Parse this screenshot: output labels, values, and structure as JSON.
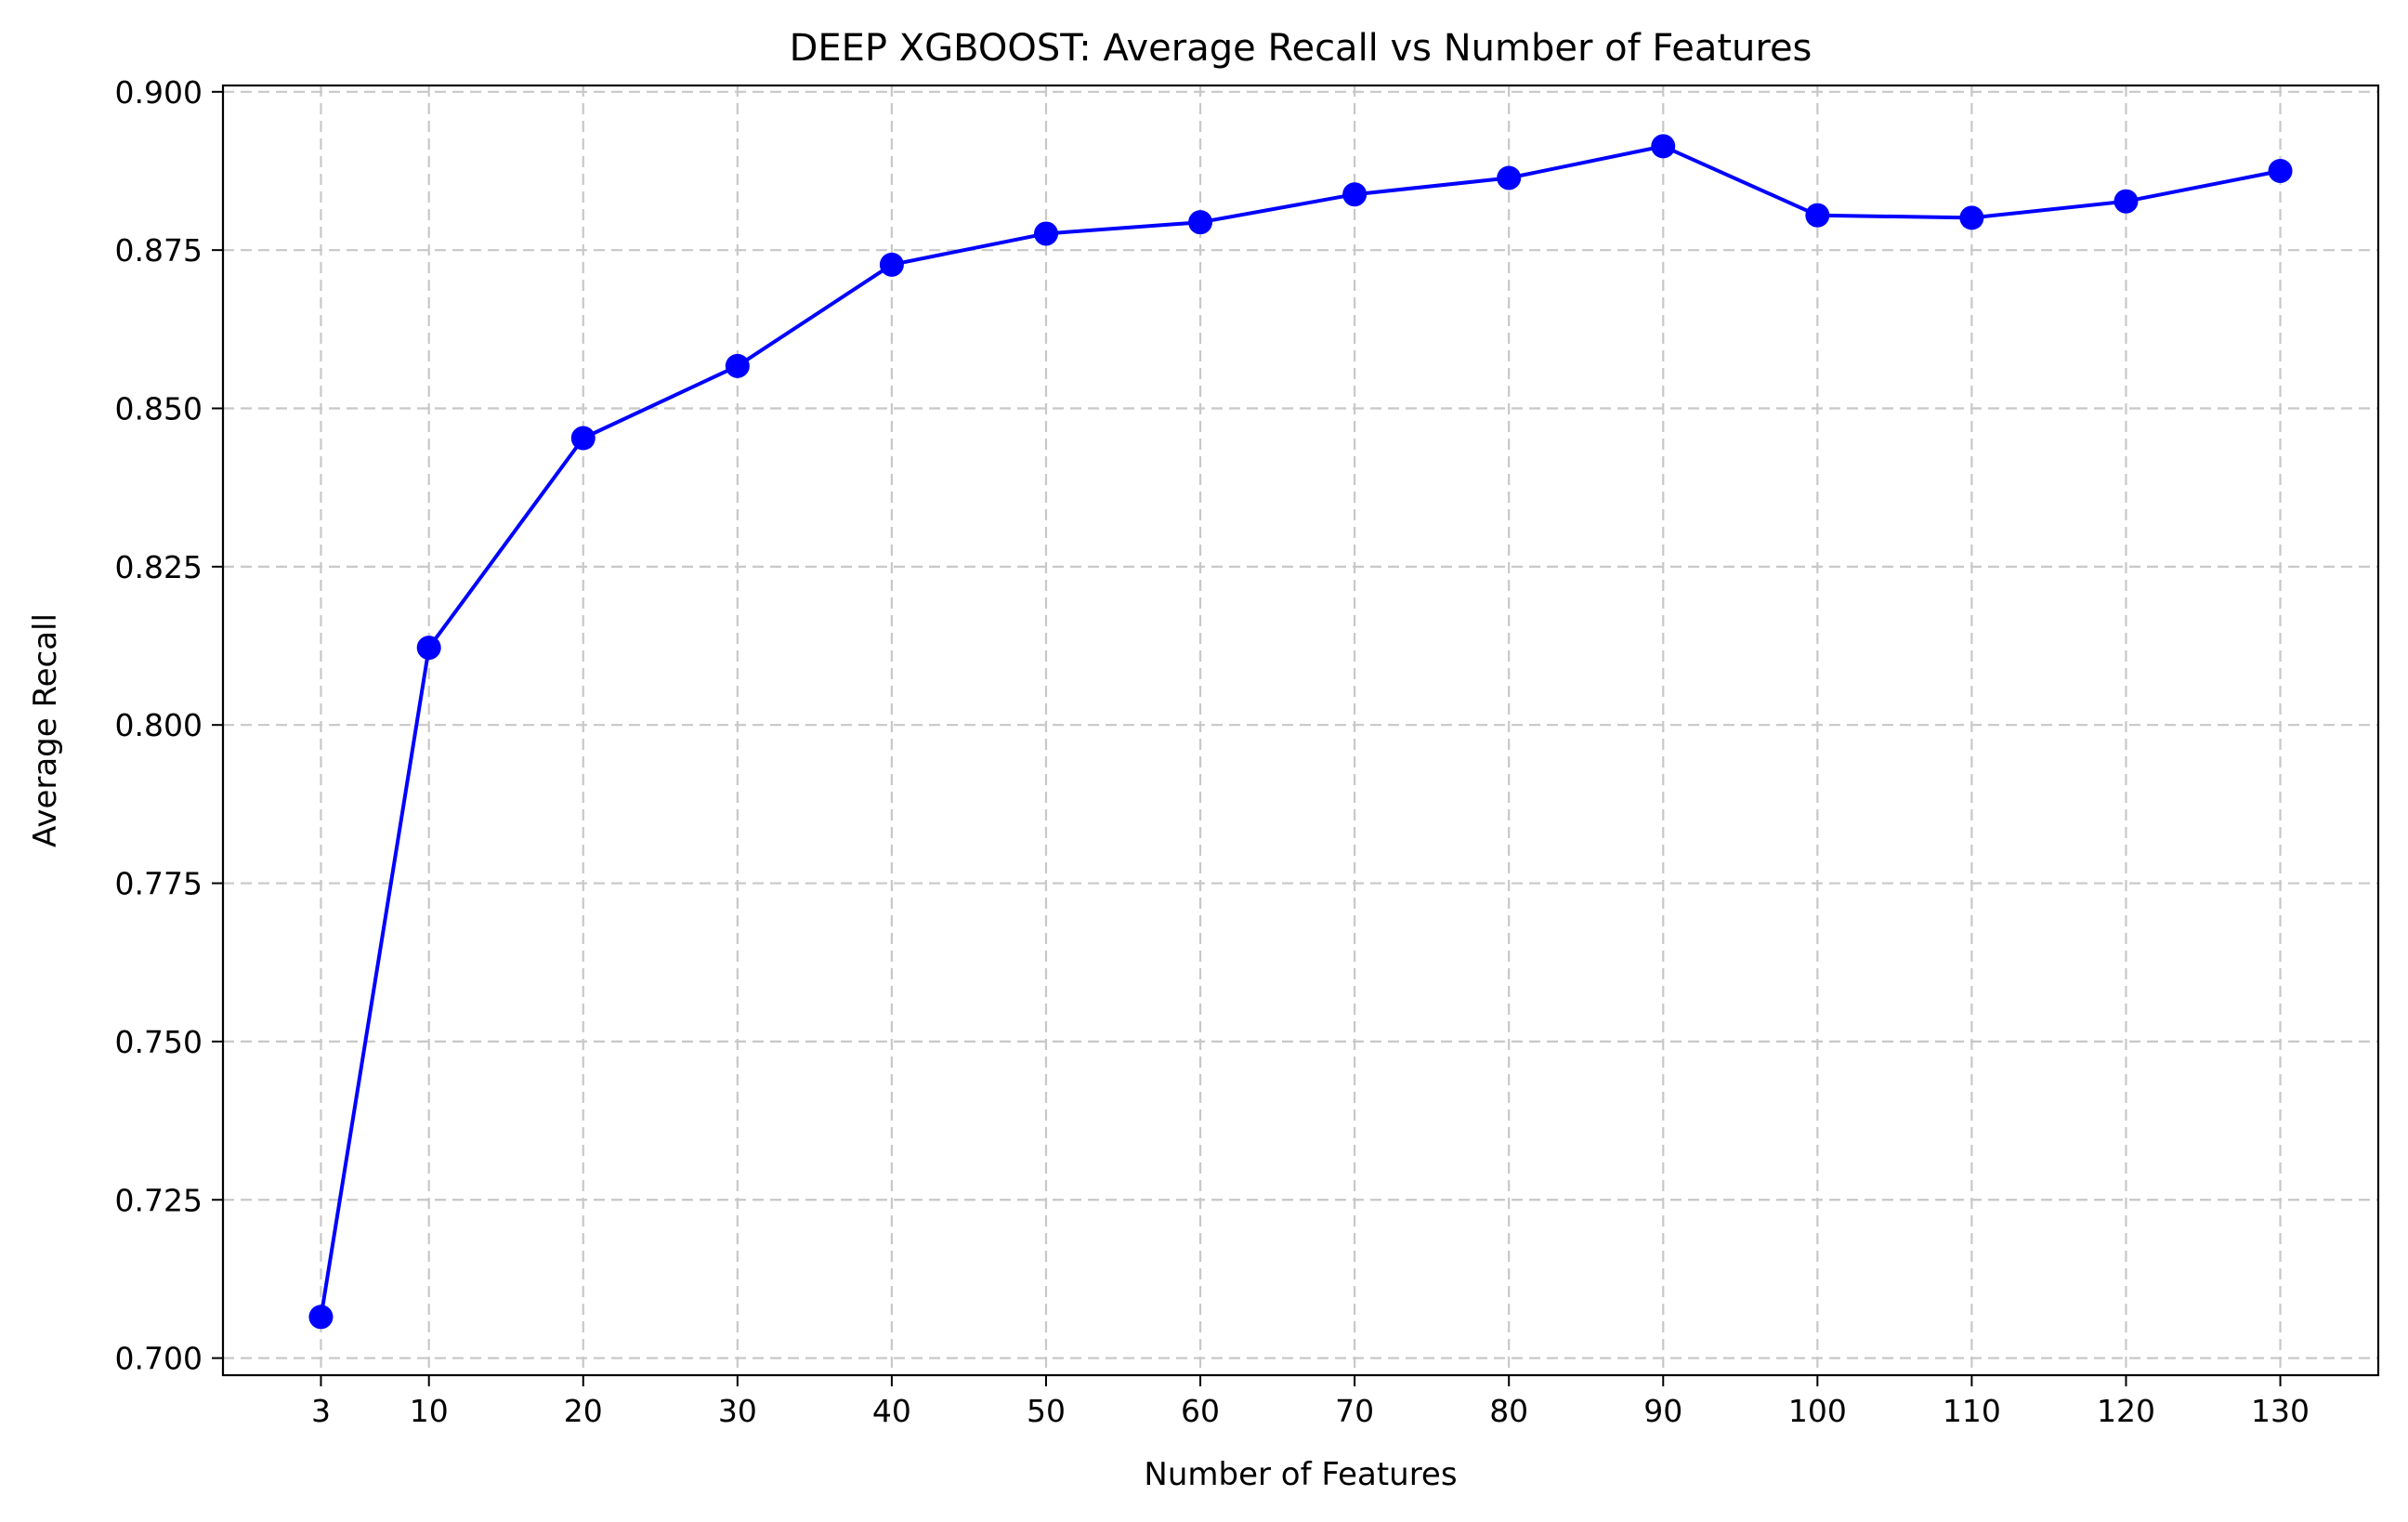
{
  "chart_data": {
    "type": "line",
    "title": "DEEP XGBOOST: Average Recall vs Number of Features",
    "xlabel": "Number of Features",
    "ylabel": "Average Recall",
    "x": [
      3,
      10,
      20,
      30,
      40,
      50,
      60,
      70,
      80,
      90,
      100,
      110,
      120,
      130
    ],
    "x_ticks": [
      "3",
      "10",
      "20",
      "30",
      "40",
      "50",
      "60",
      "70",
      "80",
      "90",
      "100",
      "110",
      "120",
      "130"
    ],
    "xlim": [
      -3.35,
      136.35
    ],
    "ylim": [
      0.6973,
      0.901
    ],
    "y_ticks": [
      "0.700",
      "0.725",
      "0.750",
      "0.775",
      "0.800",
      "0.825",
      "0.850",
      "0.875",
      "0.900"
    ],
    "grid": true,
    "series": [
      {
        "values": [
          0.7065,
          0.8122,
          0.8453,
          0.8567,
          0.8727,
          0.8776,
          0.8794,
          0.8838,
          0.8864,
          0.8914,
          0.8805,
          0.8801,
          0.8827,
          0.8875
        ],
        "color": "#0000ff",
        "marker": "circle"
      }
    ]
  }
}
